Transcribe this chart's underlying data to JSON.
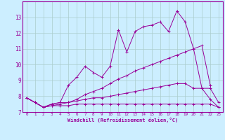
{
  "xlabel": "Windchill (Refroidissement éolien,°C)",
  "x": [
    0,
    1,
    2,
    3,
    4,
    5,
    6,
    7,
    8,
    9,
    10,
    11,
    12,
    13,
    14,
    15,
    16,
    17,
    18,
    19,
    20,
    21,
    22,
    23
  ],
  "line1": [
    7.9,
    7.6,
    7.3,
    7.5,
    7.6,
    8.7,
    9.2,
    9.9,
    9.5,
    9.2,
    9.9,
    12.2,
    10.8,
    12.1,
    12.4,
    12.5,
    12.7,
    12.1,
    13.4,
    12.7,
    11.0,
    8.5,
    8.5,
    7.6
  ],
  "line2": [
    7.9,
    7.6,
    7.3,
    7.5,
    7.6,
    7.6,
    7.7,
    7.8,
    7.9,
    7.9,
    8.0,
    8.1,
    8.2,
    8.3,
    8.4,
    8.5,
    8.6,
    8.7,
    8.8,
    8.8,
    8.5,
    8.5,
    7.8,
    7.3
  ],
  "line3": [
    7.9,
    7.6,
    7.3,
    7.4,
    7.4,
    7.4,
    7.5,
    7.5,
    7.5,
    7.5,
    7.5,
    7.5,
    7.5,
    7.5,
    7.5,
    7.5,
    7.5,
    7.5,
    7.5,
    7.5,
    7.5,
    7.5,
    7.5,
    7.3
  ],
  "line4": [
    7.9,
    7.6,
    7.3,
    7.4,
    7.5,
    7.6,
    7.8,
    8.1,
    8.3,
    8.5,
    8.8,
    9.1,
    9.3,
    9.6,
    9.8,
    10.0,
    10.2,
    10.4,
    10.6,
    10.8,
    11.0,
    11.2,
    8.7,
    null
  ],
  "color": "#990099",
  "bg_color": "#cceeff",
  "grid_color": "#aacccc",
  "ylim": [
    7,
    14
  ],
  "xlim": [
    -0.5,
    23.5
  ],
  "yticks": [
    7,
    8,
    9,
    10,
    11,
    12,
    13
  ],
  "xticks": [
    0,
    1,
    2,
    3,
    4,
    5,
    6,
    7,
    8,
    9,
    10,
    11,
    12,
    13,
    14,
    15,
    16,
    17,
    18,
    19,
    20,
    21,
    22,
    23
  ]
}
